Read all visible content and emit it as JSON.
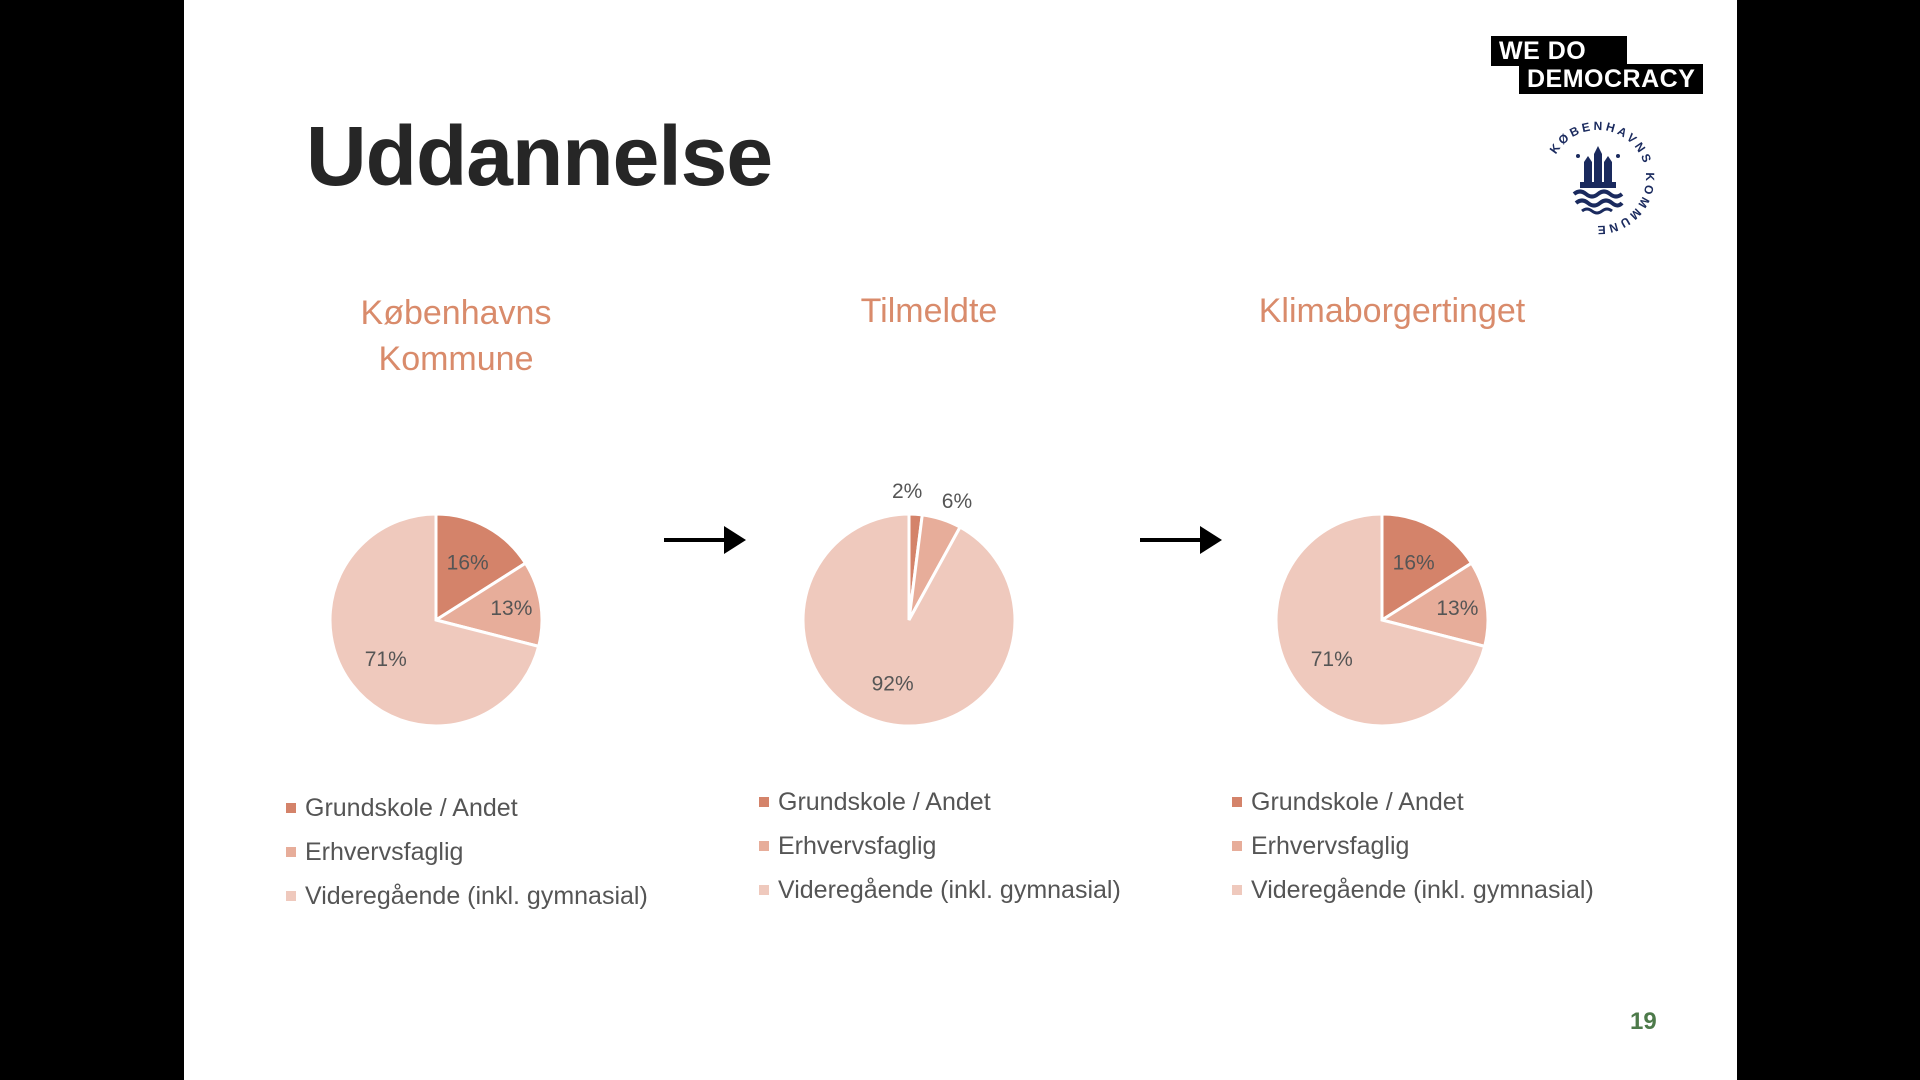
{
  "slide": {
    "title": "Uddannelse",
    "page_number": "19",
    "logo_text": [
      "WE DO",
      "DEMOCRACY"
    ],
    "crest_text": "KØBENHAVNS KOMMUNE"
  },
  "colors": {
    "grundskole": "#d4836a",
    "erhverv": "#e7ad9a",
    "videre": "#efc9bd",
    "title_accent": "#d98b6b"
  },
  "chart_data": [
    {
      "type": "pie",
      "title": "Københavns Kommune",
      "categories": [
        "Grundskole / Andet",
        "Erhvervsfaglig",
        "Videregående (inkl. gymnasial)"
      ],
      "values": [
        16,
        13,
        71
      ],
      "labels": [
        "16%",
        "13%",
        "71%"
      ],
      "legend": "bottom"
    },
    {
      "type": "pie",
      "title": "Tilmeldte",
      "categories": [
        "Grundskole / Andet",
        "Erhvervsfaglig",
        "Videregående (inkl. gymnasial)"
      ],
      "values": [
        2,
        6,
        92
      ],
      "labels": [
        "2%",
        "6%",
        "92%"
      ],
      "legend": "bottom"
    },
    {
      "type": "pie",
      "title": "Klimaborgertinget",
      "categories": [
        "Grundskole / Andet",
        "Erhvervsfaglig",
        "Videregående (inkl. gymnasial)"
      ],
      "values": [
        16,
        13,
        71
      ],
      "labels": [
        "16%",
        "13%",
        "71%"
      ],
      "legend": "bottom"
    }
  ]
}
